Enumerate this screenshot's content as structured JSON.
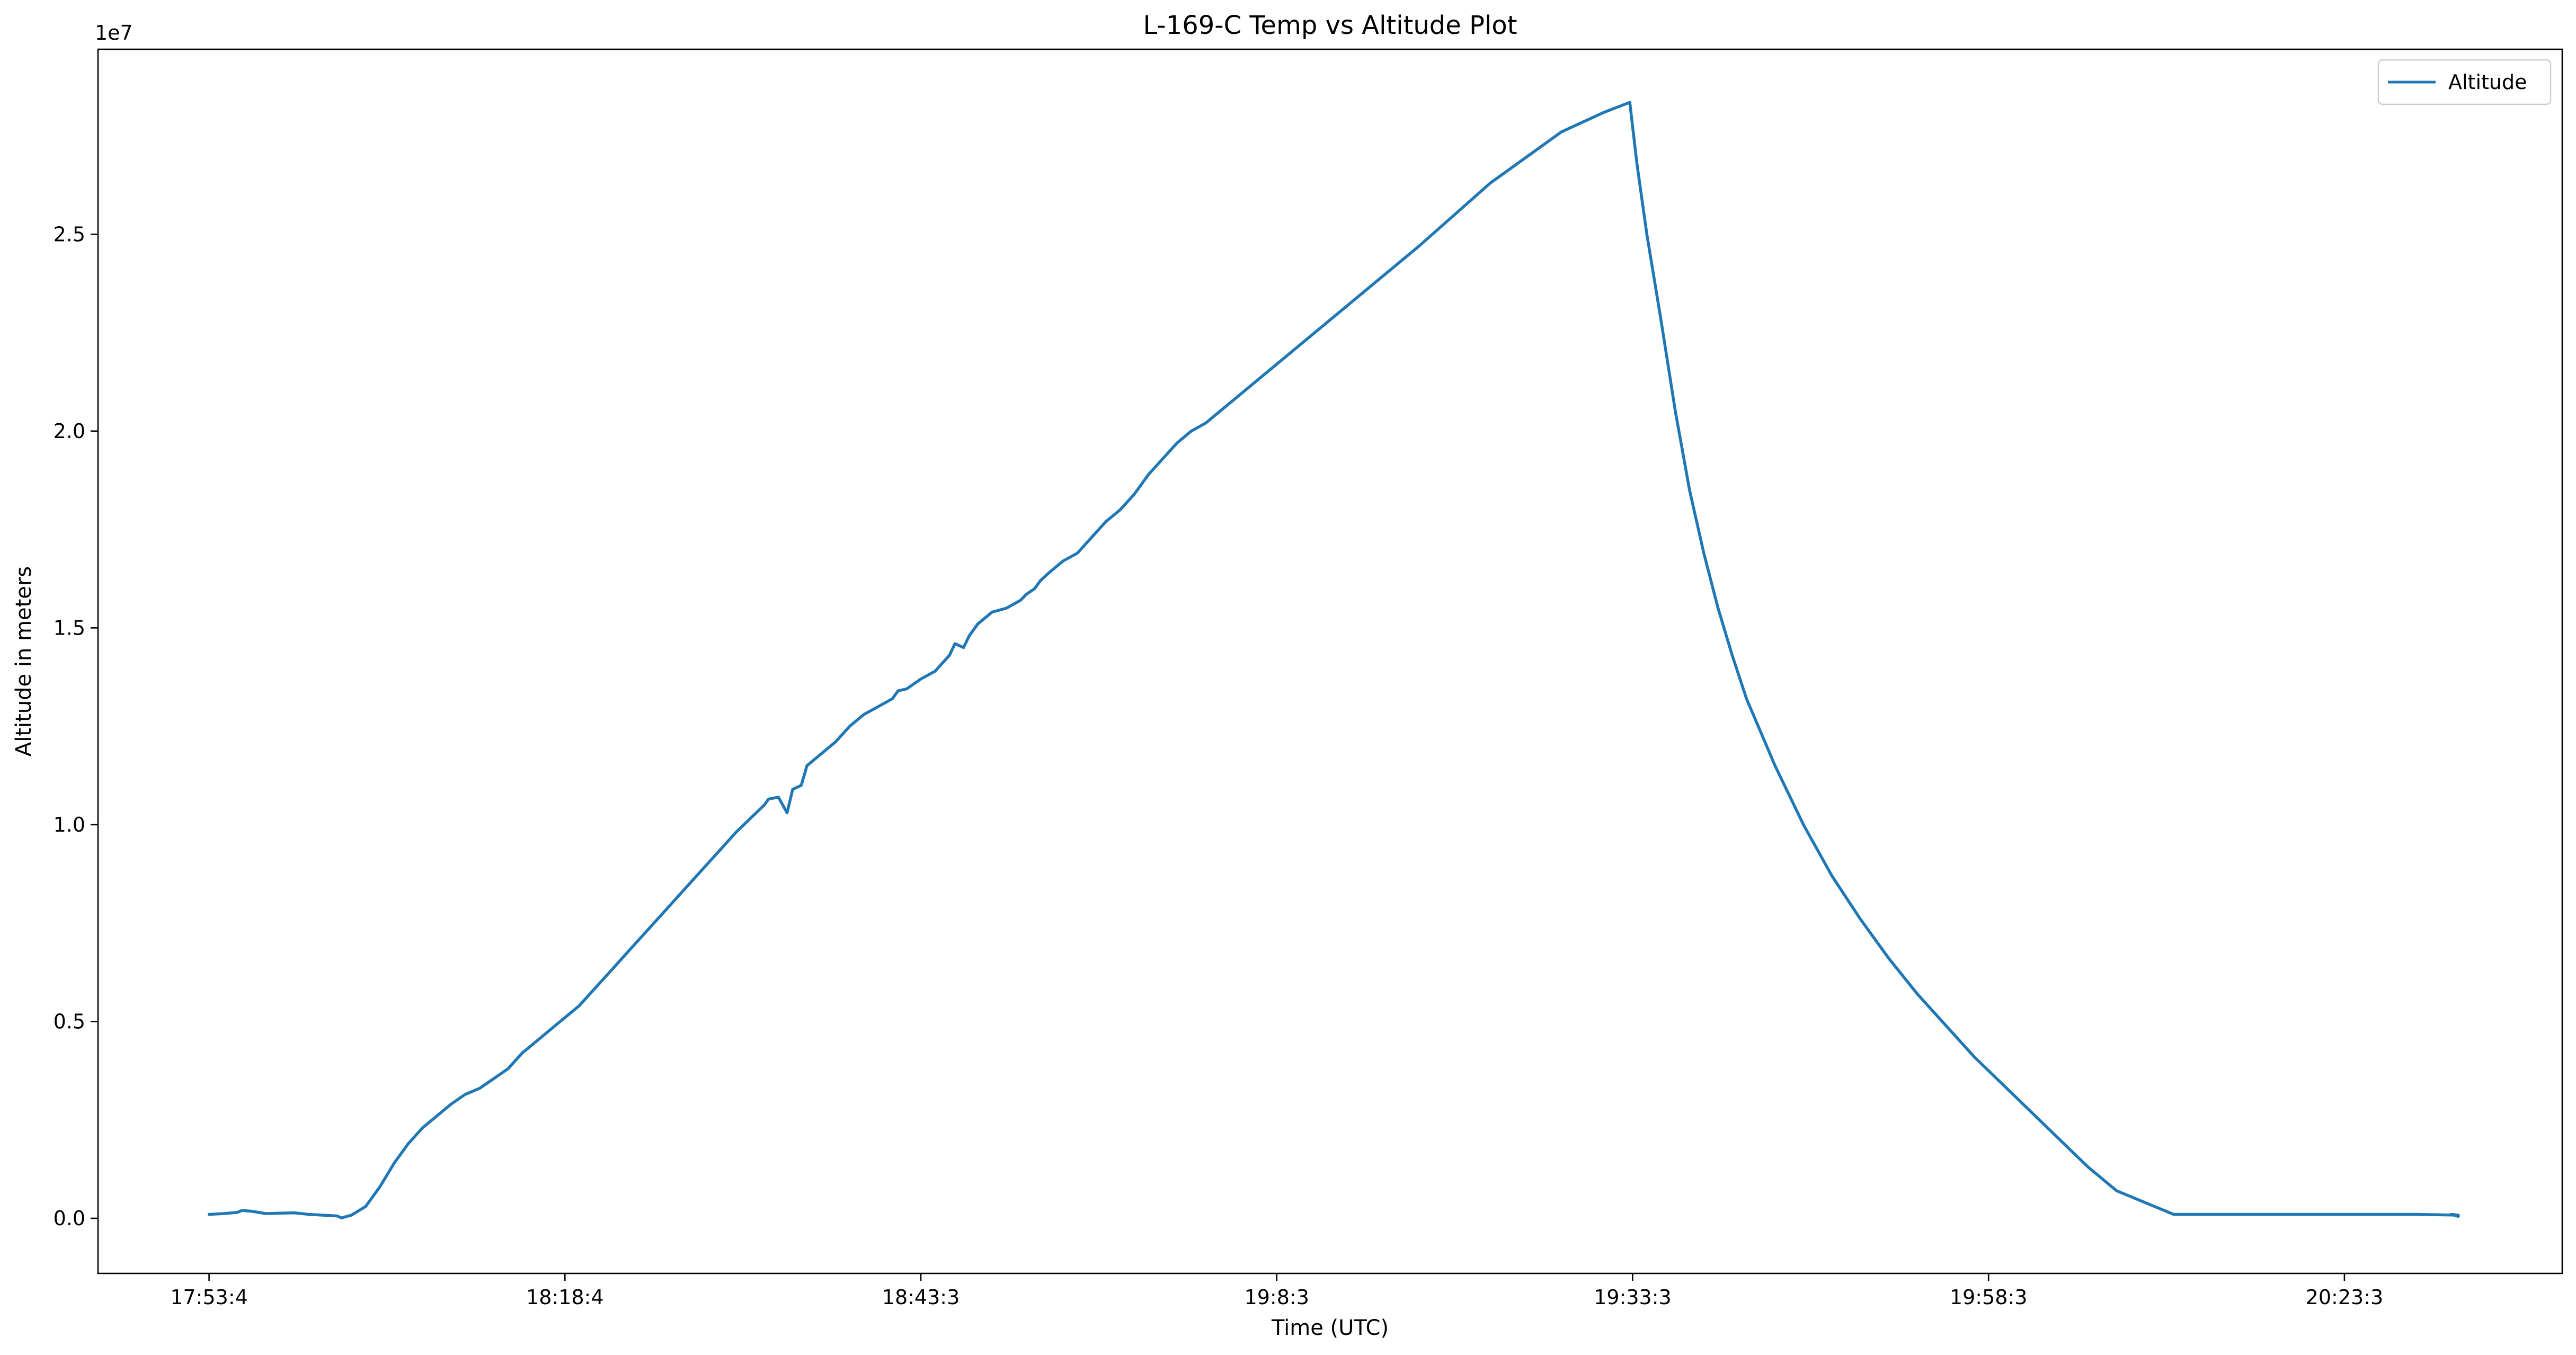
{
  "chart_data": {
    "type": "line",
    "title": "L-169-C Temp vs Altitude Plot",
    "xlabel": "Time (UTC)",
    "ylabel": "Altitude in meters",
    "y_scale_label": "1e7",
    "grid": false,
    "legend_placement": "top-right",
    "x_tick_labels": [
      "17:53:4",
      "18:18:4",
      "18:43:3",
      "19:8:3",
      "19:33:3",
      "19:58:3",
      "20:23:3"
    ],
    "x_tick_minutes": [
      0,
      25,
      50,
      75,
      100,
      125,
      150
    ],
    "y_tick_labels": [
      "0.0",
      "0.5",
      "1.0",
      "1.5",
      "2.0",
      "2.5"
    ],
    "y_tick_values": [
      0,
      5000000,
      10000000,
      15000000,
      20000000,
      25000000
    ],
    "xlim_minutes": [
      -7.8,
      165.3
    ],
    "ylim": [
      -1400000,
      29700000
    ],
    "series": [
      {
        "name": "Altitude",
        "color": "#1f77b4",
        "x_minutes": [
          0,
          1,
          2,
          2.3,
          3,
          4,
          5,
          6,
          7,
          8,
          9,
          9.3,
          10,
          11,
          12,
          13,
          14,
          15,
          16,
          17,
          18,
          19,
          20,
          21,
          22,
          23,
          24,
          25,
          26,
          27,
          28,
          29,
          30,
          31,
          32,
          33,
          34,
          35,
          36,
          37,
          38,
          39,
          39.3,
          40,
          40.6,
          41,
          41.6,
          42,
          43,
          44,
          45,
          46,
          47,
          48,
          48.4,
          49,
          50,
          51,
          52,
          52.4,
          53,
          53.4,
          54,
          55,
          56,
          57,
          57.4,
          58,
          58.4,
          59,
          60,
          61,
          62,
          63,
          64,
          65,
          66,
          67,
          68,
          69,
          70,
          75,
          80,
          85,
          90,
          95,
          98,
          99.8,
          100.3,
          101,
          102,
          103,
          104,
          105,
          106,
          107,
          108,
          110,
          112,
          114,
          116,
          118,
          120,
          122,
          124,
          126,
          128,
          130,
          132,
          134,
          136,
          138,
          140,
          142,
          144,
          146,
          148,
          150,
          152,
          155,
          158,
          157.5,
          158
        ],
        "y": [
          100000,
          120000,
          150000,
          200000,
          180000,
          120000,
          130000,
          140000,
          100000,
          80000,
          60000,
          10000,
          80000,
          300000,
          800000,
          1400000,
          1900000,
          2300000,
          2600000,
          2900000,
          3150000,
          3300000,
          3550000,
          3800000,
          4200000,
          4500000,
          4800000,
          5100000,
          5400000,
          5800000,
          6200000,
          6600000,
          7000000,
          7400000,
          7800000,
          8200000,
          8600000,
          9000000,
          9400000,
          9800000,
          10150000,
          10500000,
          10650000,
          10700000,
          10300000,
          10900000,
          11000000,
          11500000,
          11800000,
          12100000,
          12500000,
          12800000,
          13000000,
          13200000,
          13400000,
          13450000,
          13700000,
          13900000,
          14300000,
          14600000,
          14500000,
          14800000,
          15100000,
          15400000,
          15500000,
          15700000,
          15850000,
          16000000,
          16200000,
          16400000,
          16700000,
          16900000,
          17300000,
          17700000,
          18000000,
          18400000,
          18900000,
          19300000,
          19700000,
          20000000,
          20200000,
          21700000,
          23200000,
          24700000,
          26300000,
          27600000,
          28100000,
          28350000,
          26800000,
          25000000,
          22800000,
          20500000,
          18500000,
          16900000,
          15500000,
          14300000,
          13200000,
          11500000,
          10000000,
          8700000,
          7600000,
          6600000,
          5700000,
          4900000,
          4100000,
          3400000,
          2700000,
          2000000,
          1300000,
          700000,
          400000,
          100000,
          100000,
          100000,
          100000,
          100000,
          100000,
          100000,
          100000,
          100000,
          80000,
          100000,
          50000
        ]
      }
    ]
  }
}
